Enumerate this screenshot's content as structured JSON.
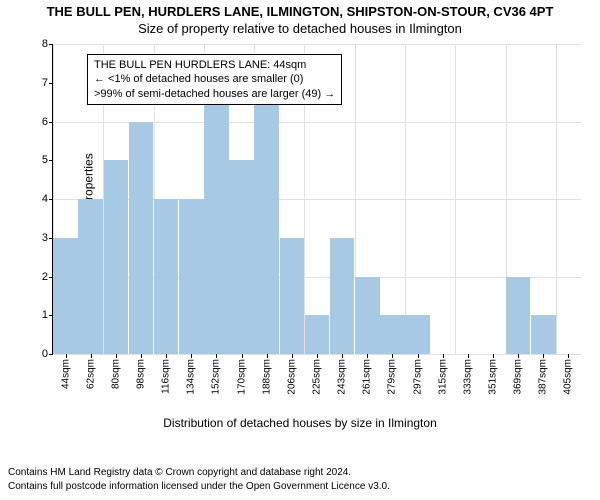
{
  "title1": "THE BULL PEN, HURDLERS LANE, ILMINGTON, SHIPSTON-ON-STOUR, CV36 4PT",
  "title2": "Size of property relative to detached houses in Ilmington",
  "ylabel": "Number of detached properties",
  "xlabel": "Distribution of detached houses by size in Ilmington",
  "chart": {
    "type": "bar",
    "background_color": "#ffffff",
    "grid_color": "#e0e0e0",
    "bar_color": "#a7c9e4",
    "axis_color": "#000000",
    "ylim": [
      0,
      8
    ],
    "ytick_step": 1,
    "ygrid_step": 2,
    "bar_width": 0.98,
    "categories": [
      "44sqm",
      "62sqm",
      "80sqm",
      "98sqm",
      "116sqm",
      "134sqm",
      "152sqm",
      "170sqm",
      "188sqm",
      "206sqm",
      "225sqm",
      "243sqm",
      "261sqm",
      "279sqm",
      "297sqm",
      "315sqm",
      "333sqm",
      "351sqm",
      "369sqm",
      "387sqm",
      "405sqm"
    ],
    "values": [
      3,
      4,
      5,
      6,
      4,
      4,
      7,
      5,
      7,
      3,
      1,
      3,
      2,
      1,
      1,
      0,
      0,
      0,
      2,
      1,
      0
    ],
    "label_fontsize": 12,
    "tick_fontsize": 10
  },
  "infobox": {
    "line1": "THE BULL PEN HURDLERS LANE: 44sqm",
    "line2": "← <1% of detached houses are smaller (0)",
    "line3": ">99% of semi-detached houses are larger (49) →",
    "border_color": "#000000",
    "background_color": "#ffffff",
    "fontsize": 11
  },
  "attribution": {
    "line1": "Contains HM Land Registry data © Crown copyright and database right 2024.",
    "line2": "Contains full postcode information licensed under the Open Government Licence v3.0."
  }
}
